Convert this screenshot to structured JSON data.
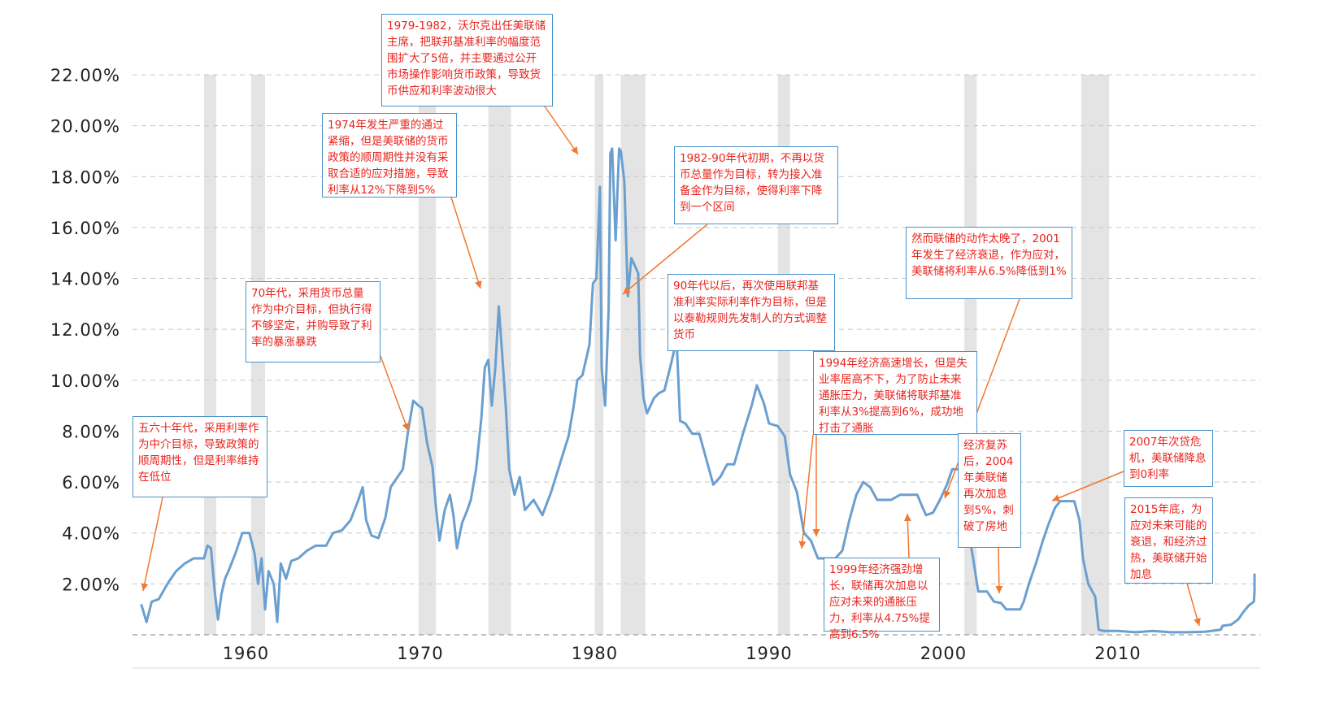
{
  "colors": {
    "line": "#6a9fd0",
    "recession": "#e4e4e4",
    "grid": "#c8c8c8",
    "annotation_text": "#e8231e",
    "annotation_border": "#4a90c8",
    "arrow": "#f07830"
  },
  "chart_data": {
    "type": "line",
    "title": "",
    "xlabel": "",
    "ylabel": "",
    "xlim": [
      1953.5,
      2017
    ],
    "ylim": [
      0,
      22
    ],
    "grid": true,
    "y_ticks": [
      "22.00%",
      "20.00%",
      "18.00%",
      "16.00%",
      "14.00%",
      "12.00%",
      "10.00%",
      "8.00%",
      "6.00%",
      "4.00%",
      "2.00%"
    ],
    "x_ticks": [
      "1960",
      "1970",
      "1980",
      "1990",
      "2000",
      "2010"
    ],
    "recessions": [
      [
        1957.6,
        1958.3
      ],
      [
        1960.3,
        1961.1
      ],
      [
        1969.9,
        1970.9
      ],
      [
        1973.9,
        1975.2
      ],
      [
        1980.0,
        1980.5
      ],
      [
        1981.5,
        1982.9
      ],
      [
        1990.5,
        1991.2
      ],
      [
        2001.2,
        2001.9
      ],
      [
        2007.9,
        2009.5
      ]
    ],
    "series": [
      {
        "values": [
          [
            1954.0,
            1.2
          ],
          [
            1954.3,
            0.5
          ],
          [
            1954.6,
            1.3
          ],
          [
            1955.0,
            1.4
          ],
          [
            1955.5,
            2.0
          ],
          [
            1956.0,
            2.5
          ],
          [
            1956.5,
            2.8
          ],
          [
            1957.0,
            3.0
          ],
          [
            1957.6,
            3.0
          ],
          [
            1957.8,
            3.5
          ],
          [
            1958.0,
            3.4
          ],
          [
            1958.2,
            1.8
          ],
          [
            1958.4,
            0.6
          ],
          [
            1958.6,
            1.6
          ],
          [
            1958.8,
            2.2
          ],
          [
            1959.0,
            2.5
          ],
          [
            1959.4,
            3.2
          ],
          [
            1959.8,
            4.0
          ],
          [
            1960.2,
            4.0
          ],
          [
            1960.5,
            3.2
          ],
          [
            1960.7,
            2.0
          ],
          [
            1960.9,
            3.0
          ],
          [
            1961.1,
            1.0
          ],
          [
            1961.3,
            2.5
          ],
          [
            1961.6,
            2.0
          ],
          [
            1961.8,
            0.5
          ],
          [
            1962.0,
            2.8
          ],
          [
            1962.3,
            2.2
          ],
          [
            1962.6,
            2.9
          ],
          [
            1963.0,
            3.0
          ],
          [
            1963.5,
            3.3
          ],
          [
            1964.0,
            3.5
          ],
          [
            1964.6,
            3.5
          ],
          [
            1965.0,
            4.0
          ],
          [
            1965.5,
            4.1
          ],
          [
            1966.0,
            4.5
          ],
          [
            1966.4,
            5.2
          ],
          [
            1966.7,
            5.8
          ],
          [
            1966.9,
            4.5
          ],
          [
            1967.2,
            3.9
          ],
          [
            1967.6,
            3.8
          ],
          [
            1968.0,
            4.6
          ],
          [
            1968.3,
            5.8
          ],
          [
            1968.7,
            6.2
          ],
          [
            1969.0,
            6.5
          ],
          [
            1969.3,
            8.0
          ],
          [
            1969.6,
            9.2
          ],
          [
            1969.9,
            9.0
          ],
          [
            1970.1,
            8.9
          ],
          [
            1970.4,
            7.5
          ],
          [
            1970.7,
            6.6
          ],
          [
            1970.9,
            5.0
          ],
          [
            1971.1,
            3.7
          ],
          [
            1971.4,
            4.9
          ],
          [
            1971.7,
            5.5
          ],
          [
            1971.9,
            4.7
          ],
          [
            1972.1,
            3.4
          ],
          [
            1972.4,
            4.4
          ],
          [
            1972.7,
            4.9
          ],
          [
            1972.9,
            5.3
          ],
          [
            1973.2,
            6.5
          ],
          [
            1973.5,
            8.5
          ],
          [
            1973.7,
            10.5
          ],
          [
            1973.9,
            10.8
          ],
          [
            1974.1,
            9.0
          ],
          [
            1974.3,
            10.5
          ],
          [
            1974.5,
            12.9
          ],
          [
            1974.7,
            11.0
          ],
          [
            1974.9,
            9.0
          ],
          [
            1975.1,
            6.5
          ],
          [
            1975.4,
            5.5
          ],
          [
            1975.7,
            6.2
          ],
          [
            1976.0,
            4.9
          ],
          [
            1976.5,
            5.3
          ],
          [
            1977.0,
            4.7
          ],
          [
            1977.5,
            5.6
          ],
          [
            1978.0,
            6.7
          ],
          [
            1978.5,
            7.8
          ],
          [
            1978.8,
            9.0
          ],
          [
            1979.0,
            10.0
          ],
          [
            1979.3,
            10.2
          ],
          [
            1979.7,
            11.4
          ],
          [
            1979.9,
            13.8
          ],
          [
            1980.1,
            14.0
          ],
          [
            1980.3,
            17.6
          ],
          [
            1980.4,
            10.5
          ],
          [
            1980.6,
            9.0
          ],
          [
            1980.8,
            12.8
          ],
          [
            1980.9,
            18.9
          ],
          [
            1981.0,
            19.1
          ],
          [
            1981.2,
            15.5
          ],
          [
            1981.4,
            19.1
          ],
          [
            1981.5,
            19.0
          ],
          [
            1981.7,
            17.8
          ],
          [
            1981.9,
            13.3
          ],
          [
            1982.1,
            14.8
          ],
          [
            1982.3,
            14.5
          ],
          [
            1982.5,
            14.2
          ],
          [
            1982.6,
            11.0
          ],
          [
            1982.8,
            9.3
          ],
          [
            1983.0,
            8.7
          ],
          [
            1983.4,
            9.3
          ],
          [
            1983.7,
            9.5
          ],
          [
            1984.0,
            9.6
          ],
          [
            1984.4,
            10.7
          ],
          [
            1984.7,
            11.6
          ],
          [
            1984.9,
            8.4
          ],
          [
            1985.2,
            8.3
          ],
          [
            1985.6,
            7.9
          ],
          [
            1986.0,
            7.9
          ],
          [
            1986.4,
            6.9
          ],
          [
            1986.8,
            5.9
          ],
          [
            1987.2,
            6.2
          ],
          [
            1987.6,
            6.7
          ],
          [
            1988.0,
            6.7
          ],
          [
            1988.5,
            7.9
          ],
          [
            1989.0,
            9.0
          ],
          [
            1989.3,
            9.8
          ],
          [
            1989.7,
            9.1
          ],
          [
            1990.0,
            8.3
          ],
          [
            1990.5,
            8.2
          ],
          [
            1990.9,
            7.8
          ],
          [
            1991.2,
            6.3
          ],
          [
            1991.6,
            5.6
          ],
          [
            1992.0,
            4.0
          ],
          [
            1992.4,
            3.7
          ],
          [
            1992.8,
            3.0
          ],
          [
            1993.3,
            3.0
          ],
          [
            1993.8,
            3.0
          ],
          [
            1994.2,
            3.3
          ],
          [
            1994.6,
            4.5
          ],
          [
            1995.0,
            5.5
          ],
          [
            1995.4,
            6.0
          ],
          [
            1995.8,
            5.8
          ],
          [
            1996.2,
            5.3
          ],
          [
            1996.6,
            5.3
          ],
          [
            1997.0,
            5.3
          ],
          [
            1997.5,
            5.5
          ],
          [
            1998.0,
            5.5
          ],
          [
            1998.5,
            5.5
          ],
          [
            1998.8,
            5.0
          ],
          [
            1999.0,
            4.7
          ],
          [
            1999.4,
            4.8
          ],
          [
            1999.8,
            5.3
          ],
          [
            2000.2,
            5.9
          ],
          [
            2000.5,
            6.5
          ],
          [
            2000.9,
            6.5
          ],
          [
            2001.1,
            5.6
          ],
          [
            2001.4,
            4.2
          ],
          [
            2001.7,
            3.0
          ],
          [
            2001.9,
            2.1
          ],
          [
            2002.0,
            1.7
          ],
          [
            2002.5,
            1.7
          ],
          [
            2002.9,
            1.3
          ],
          [
            2003.3,
            1.25
          ],
          [
            2003.6,
            1.0
          ],
          [
            2004.0,
            1.0
          ],
          [
            2004.4,
            1.0
          ],
          [
            2004.6,
            1.3
          ],
          [
            2004.9,
            2.0
          ],
          [
            2005.3,
            2.8
          ],
          [
            2005.7,
            3.7
          ],
          [
            2006.0,
            4.3
          ],
          [
            2006.4,
            5.0
          ],
          [
            2006.7,
            5.25
          ],
          [
            2007.0,
            5.25
          ],
          [
            2007.5,
            5.25
          ],
          [
            2007.8,
            4.5
          ],
          [
            2008.0,
            3.0
          ],
          [
            2008.3,
            2.0
          ],
          [
            2008.7,
            1.5
          ],
          [
            2008.9,
            0.2
          ],
          [
            2009.2,
            0.15
          ],
          [
            2010.0,
            0.15
          ],
          [
            2011.0,
            0.1
          ],
          [
            2012.0,
            0.15
          ],
          [
            2013.0,
            0.1
          ],
          [
            2014.0,
            0.1
          ],
          [
            2015.0,
            0.12
          ],
          [
            2015.9,
            0.2
          ],
          [
            2016.0,
            0.35
          ],
          [
            2016.5,
            0.4
          ],
          [
            2016.9,
            0.6
          ],
          [
            2017.2,
            0.9
          ],
          [
            2017.5,
            1.15
          ],
          [
            2017.8,
            1.3
          ],
          [
            2018.2,
            1.7
          ],
          [
            2018.5,
            1.9
          ],
          [
            2018.9,
            2.2
          ],
          [
            2019.2,
            2.4
          ]
        ]
      }
    ]
  },
  "annotations": [
    {
      "id": "a-5060",
      "text": "五六十年代，采用利率作为中介目标，导致政策的顺周期性，但是利率维持在低位"
    },
    {
      "id": "a-70s",
      "text": "70年代，采用货币总量作为中介目标，但执行得不够坚定，并购导致了利率的暴涨暴跌"
    },
    {
      "id": "a-1974",
      "text": "1974年发生严重的通过紧缩，但是美联储的货币政策的顺周期性并没有采取合适的应对措施，导致利率从12%下降到5%"
    },
    {
      "id": "a-1979",
      "text": "1979-1982，沃尔克出任美联储主席，把联邦基准利率的幅度范围扩大了5倍，并主要通过公开市场操作影响货币政策，导致货币供应和利率波动很大"
    },
    {
      "id": "a-1982",
      "text": "1982-90年代初期，不再以货币总量作为目标，转为接入准备金作为目标，使得利率下降到一个区间"
    },
    {
      "id": "a-90s",
      "text": "90年代以后，再次使用联邦基准利率实际利率作为目标，但是以泰勒规则先发制人的方式调整货币"
    },
    {
      "id": "a-1994",
      "text": "1994年经济高速增长，但是失业率居高不下，为了防止未来通胀压力，美联储将联邦基准利率从3%提高到6%，成功地打击了通胀"
    },
    {
      "id": "a-1999",
      "text": "1999年经济强劲增长，联储再次加息以应对未来的通胀压力，利率从4.75%提高到6.5%"
    },
    {
      "id": "a-2001",
      "text": "然而联储的动作太晚了，2001年发生了经济衰退，作为应对，美联储将利率从6.5%降低到1%"
    },
    {
      "id": "a-2004",
      "text": "经济复苏后，2004年美联储再次加息到5%，刺破了房地"
    },
    {
      "id": "a-2007",
      "text": "2007年次贷危机，美联储降息到0利率"
    },
    {
      "id": "a-2015",
      "text": "2015年底，为应对未来可能的衰退，和经济过热，美联储开始加息"
    }
  ]
}
